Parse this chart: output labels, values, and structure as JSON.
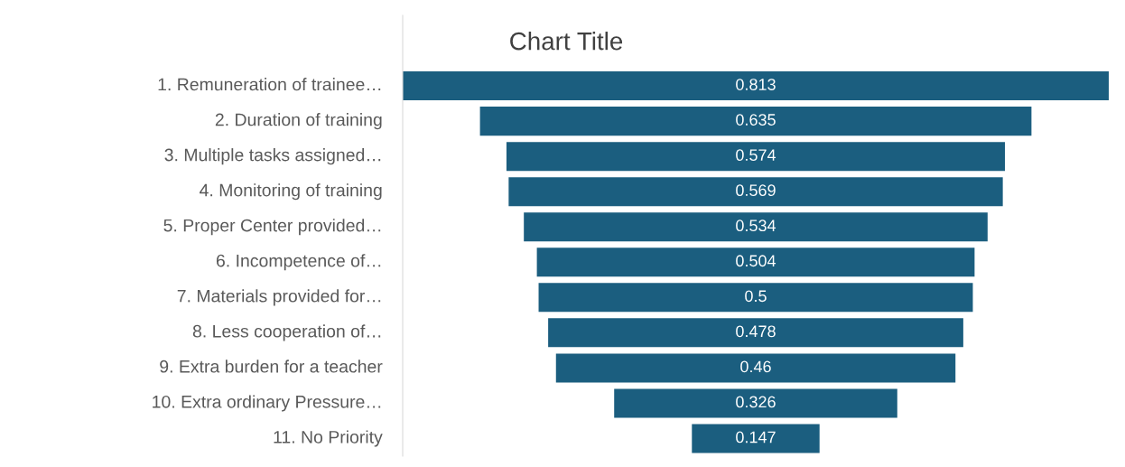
{
  "chart_data": {
    "type": "other",
    "title": "Chart Title",
    "categories": [
      "1. Remuneration of trainee…",
      "2. Duration of training",
      "3. Multiple tasks assigned…",
      "4. Monitoring of training",
      "5. Proper Center provided…",
      "6. Incompetence of…",
      "7. Materials provided for…",
      "8. Less cooperation of…",
      "9. Extra burden for a teacher",
      "10. Extra ordinary Pressure…",
      "11. No Priority"
    ],
    "values": [
      0.813,
      0.635,
      0.574,
      0.569,
      0.534,
      0.504,
      0.5,
      0.478,
      0.46,
      0.326,
      0.147
    ],
    "color": "#1b5e7f",
    "data_labels": true
  }
}
